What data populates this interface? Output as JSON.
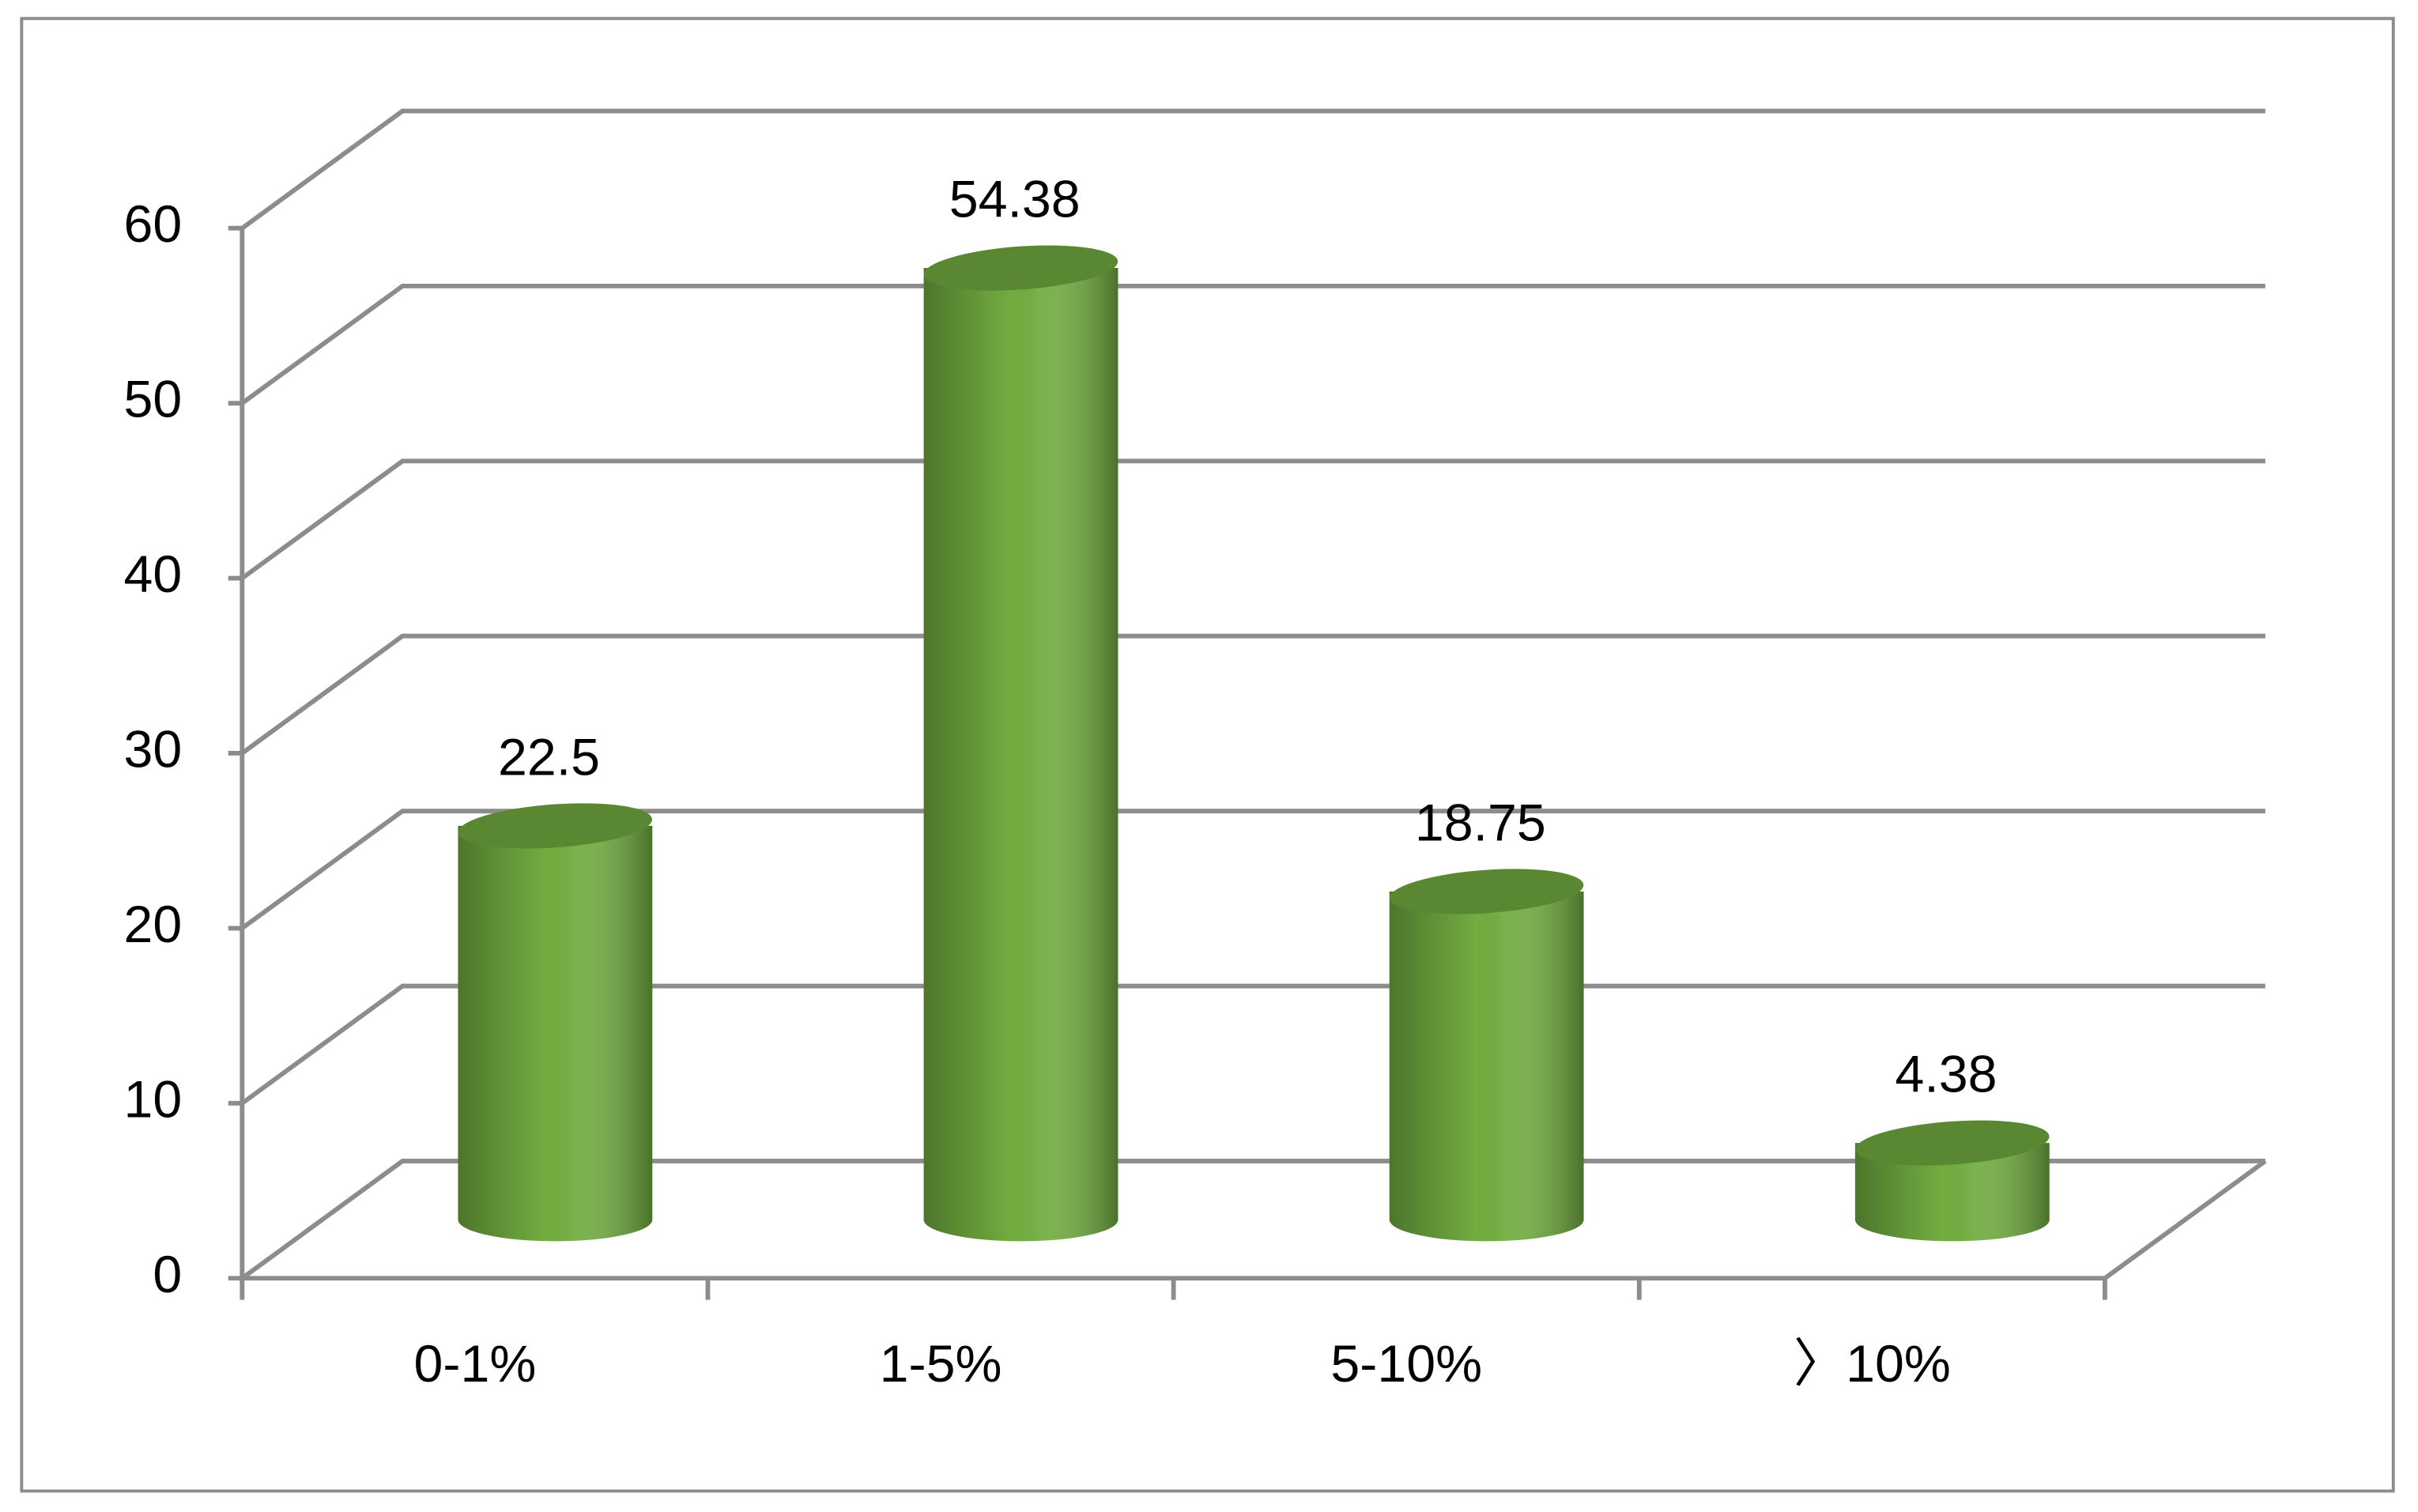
{
  "chart_data": {
    "type": "bar3d",
    "categories": [
      "0-1%",
      "1-5%",
      "5-10%",
      "〉10%"
    ],
    "values": [
      22.5,
      54.38,
      18.75,
      4.38
    ],
    "color": "#72ad40",
    "ylim": [
      0,
      60
    ],
    "yticks": [
      0,
      10,
      20,
      30,
      40,
      50,
      60
    ],
    "grid": true
  }
}
